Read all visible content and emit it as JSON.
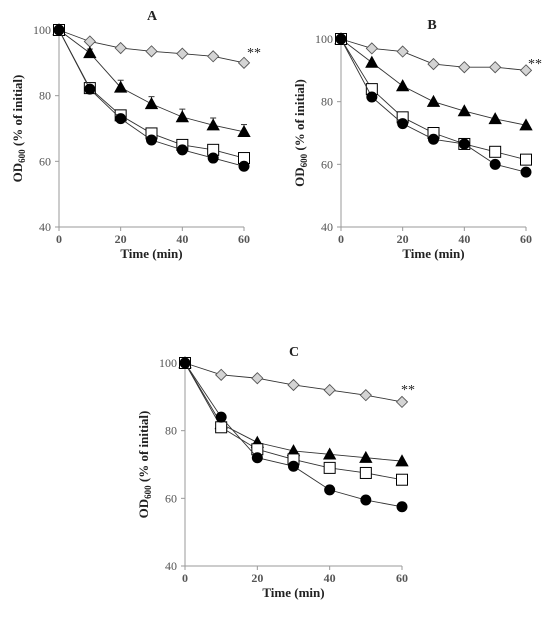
{
  "chart_data": [
    {
      "panel": "A",
      "type": "line",
      "xlabel": "Time (min)",
      "ylabel": "OD600 (% of initial)",
      "ylabel_main": "OD",
      "ylabel_sub": "600",
      "ylabel_rest": " (% of initial)",
      "xlim": [
        0,
        60
      ],
      "ylim": [
        40,
        100
      ],
      "xticks": [
        0,
        20,
        40,
        60
      ],
      "yticks": [
        40,
        60,
        80,
        100
      ],
      "annotation": "**",
      "series": [
        {
          "marker": "diamond",
          "x": [
            0,
            10,
            20,
            30,
            40,
            50,
            60
          ],
          "y": [
            100,
            96.5,
            94.5,
            93.5,
            92.8,
            92,
            90
          ]
        },
        {
          "marker": "triangle",
          "x": [
            0,
            10,
            20,
            30,
            40,
            50,
            60
          ],
          "y": [
            100,
            93,
            82.5,
            77.5,
            73.5,
            71,
            69
          ],
          "err": [
            0,
            1.2,
            2.2,
            2.2,
            2.4,
            2.2,
            2.2
          ]
        },
        {
          "marker": "square",
          "x": [
            0,
            10,
            20,
            30,
            40,
            50,
            60
          ],
          "y": [
            100,
            82.3,
            74,
            68.5,
            65,
            63.5,
            61
          ]
        },
        {
          "marker": "circle",
          "x": [
            0,
            10,
            20,
            30,
            40,
            50,
            60
          ],
          "y": [
            100,
            82,
            73,
            66.5,
            63.5,
            61,
            58.5
          ]
        }
      ]
    },
    {
      "panel": "B",
      "type": "line",
      "xlabel": "Time (min)",
      "ylabel": "OD600 (% of initial)",
      "ylabel_main": "OD",
      "ylabel_sub": "600",
      "ylabel_rest": " (% of initial)",
      "xlim": [
        0,
        60
      ],
      "ylim": [
        40,
        100
      ],
      "xticks": [
        0,
        20,
        40,
        60
      ],
      "yticks": [
        40,
        60,
        80,
        100
      ],
      "annotation": "**",
      "series": [
        {
          "marker": "diamond",
          "x": [
            0,
            10,
            20,
            30,
            40,
            50,
            60
          ],
          "y": [
            100,
            97,
            96,
            92,
            91,
            91,
            90
          ]
        },
        {
          "marker": "triangle",
          "x": [
            0,
            10,
            20,
            30,
            40,
            50,
            60
          ],
          "y": [
            100,
            92.5,
            85,
            80,
            77,
            74.5,
            72.5
          ]
        },
        {
          "marker": "square",
          "x": [
            0,
            10,
            20,
            30,
            40,
            50,
            60
          ],
          "y": [
            100,
            84,
            75,
            70,
            66.5,
            64,
            61.5
          ]
        },
        {
          "marker": "circle",
          "x": [
            0,
            10,
            20,
            30,
            40,
            50,
            60
          ],
          "y": [
            100,
            81.5,
            73,
            68,
            66.5,
            60,
            57.5
          ]
        }
      ]
    },
    {
      "panel": "C",
      "type": "line",
      "xlabel": "Time (min)",
      "ylabel": "OD600 (% of initial)",
      "ylabel_main": "OD",
      "ylabel_sub": "600",
      "ylabel_rest": " (% of initial)",
      "xlim": [
        0,
        60
      ],
      "ylim": [
        40,
        100
      ],
      "xticks": [
        0,
        20,
        40,
        60
      ],
      "yticks": [
        40,
        60,
        80,
        100
      ],
      "annotation": "**",
      "series": [
        {
          "marker": "diamond",
          "x": [
            0,
            10,
            20,
            30,
            40,
            50,
            60
          ],
          "y": [
            100,
            96.5,
            95.5,
            93.5,
            92,
            90.5,
            88.5
          ]
        },
        {
          "marker": "triangle",
          "x": [
            0,
            10,
            20,
            30,
            40,
            50,
            60
          ],
          "y": [
            100,
            82,
            76.5,
            74,
            73,
            72,
            71
          ]
        },
        {
          "marker": "square",
          "x": [
            0,
            10,
            20,
            30,
            40,
            50,
            60
          ],
          "y": [
            100,
            81,
            74.5,
            71.5,
            69,
            67.5,
            65.5
          ]
        },
        {
          "marker": "circle",
          "x": [
            0,
            10,
            20,
            30,
            40,
            50,
            60
          ],
          "y": [
            100,
            84,
            72,
            69.5,
            62.5,
            59.5,
            57.5
          ]
        }
      ]
    }
  ]
}
